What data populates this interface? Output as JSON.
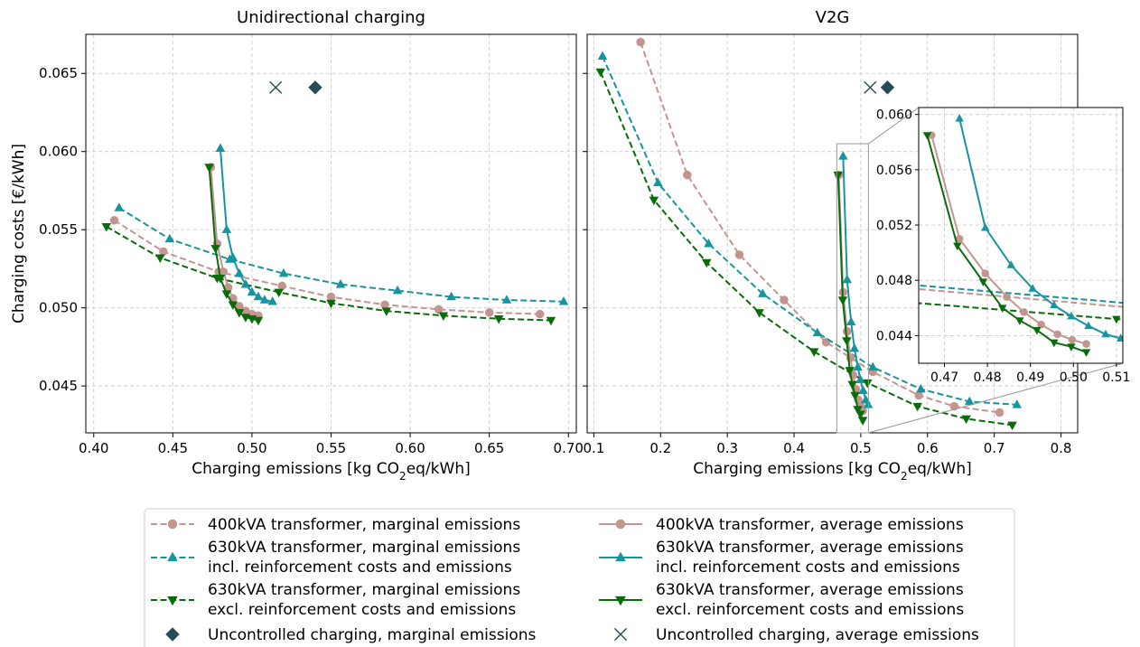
{
  "colors": {
    "c400": "#c4948f",
    "c630inc": "#16949f",
    "c630exc": "#0a6b0a",
    "uncontrolled": "#284c56"
  },
  "chart_data": [
    {
      "type": "line",
      "title": "Unidirectional charging",
      "xlabel": "Charging emissions [kg CO₂eq/kWh]",
      "ylabel": "Charging costs [€/kWh]",
      "xlim": [
        0.395,
        0.705
      ],
      "ylim": [
        0.042,
        0.0675
      ],
      "xticks": [
        0.4,
        0.45,
        0.5,
        0.55,
        0.6,
        0.65,
        0.7
      ],
      "xtick_labels": [
        "0.40",
        "0.45",
        "0.50",
        "0.55",
        "0.60",
        "0.65",
        "0.70"
      ],
      "yticks": [
        0.045,
        0.05,
        0.055,
        0.06,
        0.065
      ],
      "ytick_labels": [
        "0.045",
        "0.050",
        "0.055",
        "0.060",
        "0.065"
      ],
      "grid": true,
      "series": [
        {
          "name": "400kVA transformer, marginal emissions",
          "marker": "circle",
          "dashed": true,
          "color": "#c4948f",
          "points": [
            [
              0.413,
              0.0556
            ],
            [
              0.444,
              0.0536
            ],
            [
              0.479,
              0.0523
            ],
            [
              0.519,
              0.0514
            ],
            [
              0.55,
              0.0507
            ],
            [
              0.584,
              0.0502
            ],
            [
              0.618,
              0.0499
            ],
            [
              0.65,
              0.0497
            ],
            [
              0.682,
              0.0496
            ]
          ]
        },
        {
          "name": "630kVA transformer, marginal emissions incl. reinforcement costs and emissions",
          "marker": "triangle-up",
          "dashed": true,
          "color": "#16949f",
          "points": [
            [
              0.416,
              0.0564
            ],
            [
              0.448,
              0.0544
            ],
            [
              0.486,
              0.0531
            ],
            [
              0.52,
              0.0522
            ],
            [
              0.556,
              0.0515
            ],
            [
              0.592,
              0.0511
            ],
            [
              0.626,
              0.0507
            ],
            [
              0.661,
              0.0505
            ],
            [
              0.697,
              0.0504
            ]
          ]
        },
        {
          "name": "630kVA transformer, marginal emissions excl. reinforcement costs and emissions",
          "marker": "triangle-down",
          "dashed": true,
          "color": "#0a6b0a",
          "points": [
            [
              0.408,
              0.0552
            ],
            [
              0.442,
              0.0532
            ],
            [
              0.478,
              0.0519
            ],
            [
              0.517,
              0.051
            ],
            [
              0.55,
              0.0503
            ],
            [
              0.585,
              0.0498
            ],
            [
              0.621,
              0.0495
            ],
            [
              0.656,
              0.0493
            ],
            [
              0.689,
              0.0492
            ]
          ]
        },
        {
          "name": "400kVA transformer, average emissions",
          "marker": "circle",
          "dashed": false,
          "color": "#c4948f",
          "points": [
            [
              0.474,
              0.059
            ],
            [
              0.478,
              0.0541
            ],
            [
              0.482,
              0.0523
            ],
            [
              0.485,
              0.0513
            ],
            [
              0.488,
              0.0506
            ],
            [
              0.492,
              0.0501
            ],
            [
              0.496,
              0.0498
            ],
            [
              0.5,
              0.0496
            ],
            [
              0.504,
              0.0495
            ]
          ]
        },
        {
          "name": "630kVA transformer, average emissions incl. reinforcement costs and emissions",
          "marker": "triangle-up",
          "dashed": false,
          "color": "#16949f",
          "points": [
            [
              0.48,
              0.0602
            ],
            [
              0.484,
              0.055
            ],
            [
              0.488,
              0.0532
            ],
            [
              0.492,
              0.0522
            ],
            [
              0.496,
              0.0515
            ],
            [
              0.5,
              0.051
            ],
            [
              0.504,
              0.0507
            ],
            [
              0.508,
              0.0505
            ],
            [
              0.513,
              0.0504
            ]
          ]
        },
        {
          "name": "630kVA transformer, average emissions excl. reinforcement costs and emissions",
          "marker": "triangle-down",
          "dashed": false,
          "color": "#0a6b0a",
          "points": [
            [
              0.473,
              0.059
            ],
            [
              0.477,
              0.0538
            ],
            [
              0.48,
              0.0519
            ],
            [
              0.484,
              0.0509
            ],
            [
              0.488,
              0.0502
            ],
            [
              0.492,
              0.0497
            ],
            [
              0.496,
              0.0494
            ],
            [
              0.5,
              0.0493
            ],
            [
              0.504,
              0.0492
            ]
          ]
        }
      ],
      "uncontrolled": {
        "marginal": [
          0.54,
          0.0641
        ],
        "average": [
          0.515,
          0.0641
        ]
      }
    },
    {
      "type": "line",
      "title": "V2G",
      "xlabel": "Charging emissions [kg CO₂eq/kWh]",
      "xlim": [
        0.09,
        0.825
      ],
      "ylim": [
        0.042,
        0.0675
      ],
      "xticks": [
        0.1,
        0.2,
        0.3,
        0.4,
        0.5,
        0.6,
        0.7,
        0.8
      ],
      "xtick_labels": [
        "0.1",
        "0.2",
        "0.3",
        "0.4",
        "0.5",
        "0.6",
        "0.7",
        "0.8"
      ],
      "yticks": [
        0.045,
        0.05,
        0.055,
        0.06,
        0.065
      ],
      "grid": true,
      "series": [
        {
          "name": "400kVA transformer, marginal emissions",
          "marker": "circle",
          "dashed": true,
          "color": "#c4948f",
          "points": [
            [
              0.17,
              0.067
            ],
            [
              0.24,
              0.0585
            ],
            [
              0.318,
              0.0534
            ],
            [
              0.385,
              0.0505
            ],
            [
              0.448,
              0.0478
            ],
            [
              0.518,
              0.0459
            ],
            [
              0.587,
              0.0444
            ],
            [
              0.64,
              0.0437
            ],
            [
              0.708,
              0.0433
            ]
          ]
        },
        {
          "name": "630kVA transformer, marginal emissions incl. reinforcement costs and emissions",
          "marker": "triangle-up",
          "dashed": true,
          "color": "#16949f",
          "points": [
            [
              0.113,
              0.0661
            ],
            [
              0.196,
              0.058
            ],
            [
              0.272,
              0.0541
            ],
            [
              0.353,
              0.0509
            ],
            [
              0.435,
              0.0484
            ],
            [
              0.518,
              0.0462
            ],
            [
              0.59,
              0.0448
            ],
            [
              0.663,
              0.044
            ],
            [
              0.734,
              0.0438
            ]
          ]
        },
        {
          "name": "630kVA transformer, marginal emissions excl. reinforcement costs and emissions",
          "marker": "triangle-down",
          "dashed": true,
          "color": "#0a6b0a",
          "points": [
            [
              0.11,
              0.0651
            ],
            [
              0.19,
              0.0569
            ],
            [
              0.269,
              0.0529
            ],
            [
              0.348,
              0.0497
            ],
            [
              0.43,
              0.0472
            ],
            [
              0.51,
              0.0452
            ],
            [
              0.585,
              0.0437
            ],
            [
              0.658,
              0.0429
            ],
            [
              0.727,
              0.0425
            ]
          ]
        },
        {
          "name": "400kVA transformer, average emissions",
          "marker": "circle",
          "dashed": false,
          "color": "#c4948f",
          "points": [
            [
              0.467,
              0.0585
            ],
            [
              0.4735,
              0.051
            ],
            [
              0.4795,
              0.0485
            ],
            [
              0.4845,
              0.0468
            ],
            [
              0.4885,
              0.0457
            ],
            [
              0.4925,
              0.0448
            ],
            [
              0.4963,
              0.0441
            ],
            [
              0.4997,
              0.0437
            ],
            [
              0.503,
              0.0434
            ]
          ]
        },
        {
          "name": "630kVA transformer, average emissions incl. reinforcement costs and emissions",
          "marker": "triangle-up",
          "dashed": false,
          "color": "#16949f",
          "points": [
            [
              0.4735,
              0.0597
            ],
            [
              0.4795,
              0.0518
            ],
            [
              0.4855,
              0.0491
            ],
            [
              0.4905,
              0.0474
            ],
            [
              0.4955,
              0.0462
            ],
            [
              0.4995,
              0.0454
            ],
            [
              0.5035,
              0.0447
            ],
            [
              0.5075,
              0.0441
            ],
            [
              0.511,
              0.0438
            ]
          ]
        },
        {
          "name": "630kVA transformer, average emissions excl. reinforcement costs and emissions",
          "marker": "triangle-down",
          "dashed": false,
          "color": "#0a6b0a",
          "points": [
            [
              0.466,
              0.0585
            ],
            [
              0.473,
              0.0505
            ],
            [
              0.479,
              0.0479
            ],
            [
              0.4835,
              0.046
            ],
            [
              0.4875,
              0.0451
            ],
            [
              0.4915,
              0.0444
            ],
            [
              0.4955,
              0.0435
            ],
            [
              0.4995,
              0.0432
            ],
            [
              0.503,
              0.0428
            ]
          ]
        }
      ],
      "uncontrolled": {
        "marginal": [
          0.54,
          0.0641
        ],
        "average": [
          0.514,
          0.0641
        ]
      },
      "inset": {
        "xlim": [
          0.464,
          0.5115
        ],
        "ylim": [
          0.042,
          0.0605
        ],
        "xticks": [
          0.47,
          0.48,
          0.49,
          0.5,
          0.51
        ],
        "xtick_labels": [
          "0.47",
          "0.48",
          "0.49",
          "0.50",
          "0.51"
        ],
        "yticks": [
          0.044,
          0.048,
          0.052,
          0.056,
          0.06
        ],
        "ytick_labels": [
          "0.044",
          "0.048",
          "0.052",
          "0.056",
          "0.060"
        ]
      }
    }
  ],
  "legend": {
    "items": [
      {
        "line1": "400kVA transformer, marginal emissions",
        "line2": "",
        "marker": "circle",
        "dashed": true,
        "color": "#c4948f"
      },
      {
        "line1": "400kVA transformer, average emissions",
        "line2": "",
        "marker": "circle",
        "dashed": false,
        "color": "#c4948f"
      },
      {
        "line1": "630kVA transformer, marginal emissions",
        "line2": "incl. reinforcement costs and emissions",
        "marker": "triangle-up",
        "dashed": true,
        "color": "#16949f"
      },
      {
        "line1": "630kVA transformer, average emissions",
        "line2": "incl. reinforcement costs and emissions",
        "marker": "triangle-up",
        "dashed": false,
        "color": "#16949f"
      },
      {
        "line1": "630kVA transformer, marginal emissions",
        "line2": "excl. reinforcement costs and emissions",
        "marker": "triangle-down",
        "dashed": true,
        "color": "#0a6b0a"
      },
      {
        "line1": "630kVA transformer, average emissions",
        "line2": "excl. reinforcement costs and emissions",
        "marker": "triangle-down",
        "dashed": false,
        "color": "#0a6b0a"
      },
      {
        "line1": "Uncontrolled charging, marginal emissions",
        "line2": "",
        "marker": "diamond",
        "dashed": null,
        "color": "#284c56"
      },
      {
        "line1": "Uncontrolled charging, average emissions",
        "line2": "",
        "marker": "x",
        "dashed": null,
        "color": "#284c56"
      }
    ]
  }
}
